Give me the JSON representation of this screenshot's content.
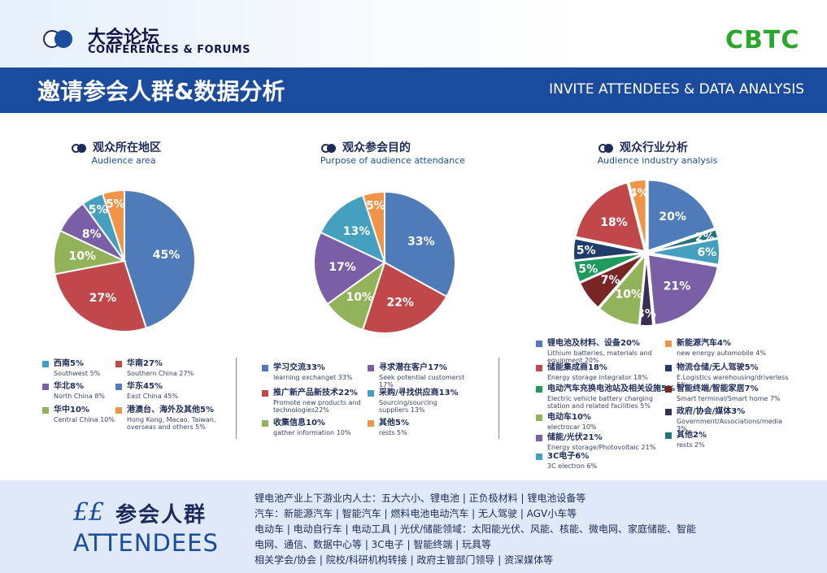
{
  "header": {
    "brand_cn": "大会论坛",
    "brand_en": "CONFERENCES  & FORUMS",
    "logo": "CBTC",
    "title_cn": "邀请参会人群&数据分析",
    "title_en": "INVITE ATTENDEES & DATA ANALYSIS"
  },
  "chart_data": [
    {
      "type": "pie",
      "title": "观众所在地区",
      "subtitle": "Audience area",
      "slices": [
        {
          "cn": "华东45%",
          "en": "East China 45%",
          "value": 45,
          "label": "45%",
          "color": "#4f7cb8"
        },
        {
          "cn": "华南27%",
          "en": "Southern China 27%",
          "value": 27,
          "label": "27%",
          "color": "#c0474a"
        },
        {
          "cn": "华中10%",
          "en": "Central China 10%",
          "value": 10,
          "label": "10%",
          "color": "#93b35a"
        },
        {
          "cn": "华北8%",
          "en": "North China 8%",
          "value": 8,
          "label": "8%",
          "color": "#7b5fa6"
        },
        {
          "cn": "西南5%",
          "en": "Southwest 5%",
          "value": 5,
          "label": "5%",
          "color": "#45a0bf"
        },
        {
          "cn": "港澳台、海外及其他5%",
          "en": "Hong Kong, Macao, Taiwan, overseas and others 5%",
          "value": 5,
          "label": "5%",
          "color": "#ef9448"
        }
      ]
    },
    {
      "type": "pie",
      "title": "观众参会目的",
      "subtitle": "Purpose of audience attendance",
      "slices": [
        {
          "cn": "学习交流33%",
          "en": "learning exchanget 33%",
          "value": 33,
          "label": "33%",
          "color": "#4f7cb8"
        },
        {
          "cn": "推广新产品新技术22%",
          "en": "Promote new products and technologies22%",
          "value": 22,
          "label": "22%",
          "color": "#c0474a"
        },
        {
          "cn": "收集信息10%",
          "en": "gather information 10%",
          "value": 10,
          "label": "10%",
          "color": "#93b35a"
        },
        {
          "cn": "寻求潜在客户17%",
          "en": "Seek potential customerst 17%",
          "value": 17,
          "label": "17%",
          "color": "#7b5fa6"
        },
        {
          "cn": "采购/寻找供应商13%",
          "en": "Sourcing/sourcing suppliers 13%",
          "value": 13,
          "label": "13%",
          "color": "#45a0bf"
        },
        {
          "cn": "其他5%",
          "en": "rests 5%",
          "value": 5,
          "label": "5%",
          "color": "#ef9448"
        }
      ]
    },
    {
      "type": "pie",
      "title": "观众行业分析",
      "subtitle": "Audience industry analysis",
      "slices": [
        {
          "cn": "锂电池及材料、设备20%",
          "en": "Lithium batteries, materials and equipment 20%",
          "value": 20,
          "label": "20%",
          "color": "#4f7cb8"
        },
        {
          "cn": "其他2%",
          "en": "rests 2%",
          "value": 2,
          "label": "2%",
          "color": "#26707d"
        },
        {
          "cn": "3C电子6%",
          "en": "3C electron 6%",
          "value": 6,
          "label": "6%",
          "color": "#45a0bf"
        },
        {
          "cn": "储能/光伏21%",
          "en": "Energy storage/Photovoltaic 21%",
          "value": 21,
          "label": "21%",
          "color": "#7b5fa6"
        },
        {
          "cn": "政府/协会/媒体3%",
          "en": "Government/Associations/media 3%",
          "value": 3,
          "label": "3%",
          "color": "#3a2e55"
        },
        {
          "cn": "电动车10%",
          "en": "electrocar 10%",
          "value": 10,
          "label": "10%",
          "color": "#93b35a"
        },
        {
          "cn": "智能终端/智能家居7%",
          "en": "Smart terminal/Smart home 7%",
          "value": 7,
          "label": "7%",
          "color": "#7a2626"
        },
        {
          "cn": "电动汽车充换电池站及相关设施5%",
          "en": "Electric vehicle battery charging station and related facilities 5%",
          "value": 5,
          "label": "5%",
          "color": "#1f9a5e"
        },
        {
          "cn": "物流仓储/无人驾驶5%",
          "en": "E.Logistics warehousing/driverless 5%",
          "value": 5,
          "label": "5%",
          "color": "#1f3d6b"
        },
        {
          "cn": "储能集成商18%",
          "en": "Energy storage integrator 18%",
          "value": 18,
          "label": "18%",
          "color": "#c0474a"
        },
        {
          "cn": "新能源汽车4%",
          "en": "new energy automobile 4%",
          "value": 4,
          "label": "4%",
          "color": "#ef9448"
        }
      ]
    }
  ],
  "attendees": {
    "quote": "££",
    "title_cn": "参会人群",
    "title_en": "ATTENDEES",
    "lines": [
      "锂电池产业上下游业内人士：五大六小、锂电池 | 正负极材料 | 锂电池设备等",
      "汽车：新能源汽车 | 智能汽车 | 燃料电池电动汽车 | 无人驾驶 | AGV小车等",
      "电动车 | 电动自行车 | 电动工具 | 光伏/储能领域：太阳能光伏、风能、核能、微电网、家庭储能、智能",
      "电网、通信、数据中心等 | 3C电子 | 智能终端 | 玩具等",
      "相关学会/协会 | 院校/科研机构转接 | 政府主管部门领导 | 资深媒体等"
    ]
  }
}
